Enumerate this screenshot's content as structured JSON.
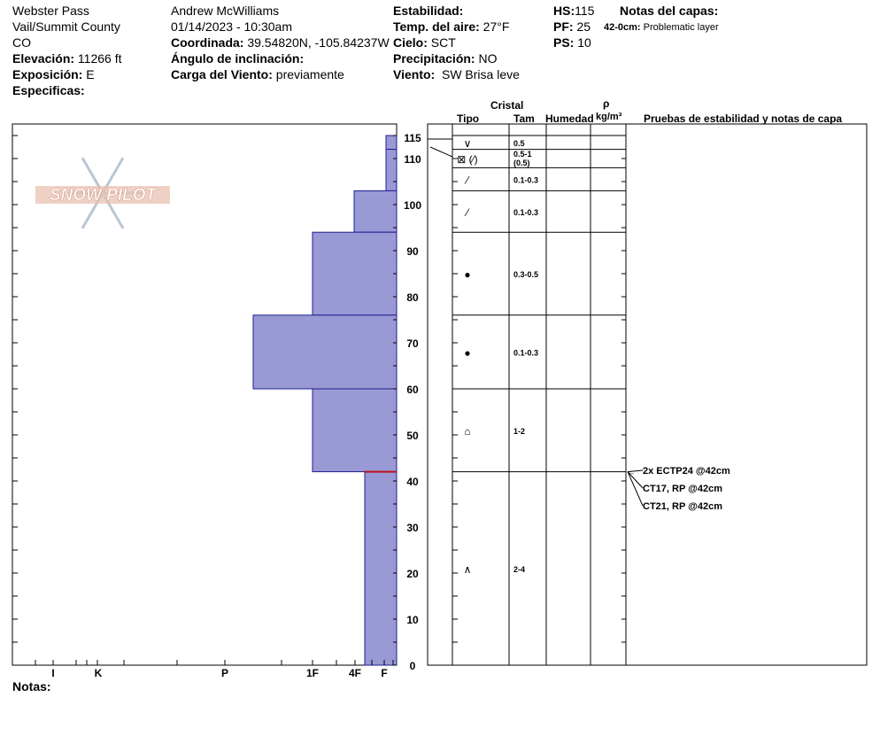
{
  "header": {
    "location": "Webster Pass",
    "region": "Vail/Summit County",
    "state": "CO",
    "elevation_label": "Elevación:",
    "elevation_value": "11266 ft",
    "aspect_label": "Exposición:",
    "aspect_value": "E",
    "specifics_label": "Especificas:",
    "observer": "Andrew McWilliams",
    "datetime": "01/14/2023 - 10:30am",
    "coord_label": "Coordinada:",
    "coord_value": "39.54820N, -105.84237W",
    "slope_label": "Ángulo de inclinación:",
    "wind_load_label": "Carga del Viento:",
    "wind_load_value": "previamente",
    "stability_label": "Estabilidad:",
    "air_temp_label": "Temp. del aire:",
    "air_temp_value": "27°F",
    "sky_label": "Cielo:",
    "sky_value": "SCT",
    "precip_label": "Precipitación:",
    "precip_value": "NO",
    "wind_label": "Viento:",
    "wind_value": "SW Brisa leve",
    "hs_label": "HS:",
    "hs_value": "115",
    "pf_label": "PF:",
    "pf_value": "25",
    "ps_label": "PS:",
    "ps_value": "10",
    "layer_notes_label": "Notas del capas:",
    "layer_note_depth": "42-0cm:",
    "layer_note_text": "Problematic layer"
  },
  "logo_text": "SNOW PILOT",
  "notes_label": "Notas:",
  "columns": {
    "crystal": "Cristal",
    "type": "Tipo",
    "size": "Tam",
    "moisture": "Humedad",
    "rho": "ρ",
    "density_unit": "kg/m³",
    "tests": "Pruebas de estabilidad y notas de capa"
  },
  "colors": {
    "hardness_fill": "#9999d6",
    "hardness_stroke": "#1f1f8f",
    "weak_layer": "#c0101a",
    "grid": "#000000"
  },
  "chart_data": {
    "type": "bar",
    "orientation": "horizontal-step",
    "y_axis_label": "",
    "y_ticks": [
      0,
      10,
      20,
      30,
      40,
      50,
      60,
      70,
      80,
      90,
      100,
      110,
      115
    ],
    "ylim": [
      0,
      115
    ],
    "hardness_ticks": [
      "I",
      "K",
      "P",
      "1F",
      "4F",
      "F"
    ],
    "layers": [
      {
        "top": 115,
        "bottom": 112,
        "hardness": "F+"
      },
      {
        "top": 112,
        "bottom": 103,
        "hardness": "F+"
      },
      {
        "top": 103,
        "bottom": 94,
        "hardness": "4F-"
      },
      {
        "top": 94,
        "bottom": 76,
        "hardness": "1F"
      },
      {
        "top": 76,
        "bottom": 60,
        "hardness": "1F+"
      },
      {
        "top": 60,
        "bottom": 42,
        "hardness": "1F"
      },
      {
        "top": 42,
        "bottom": 0,
        "hardness": "4F+"
      }
    ],
    "weak_layer_depth": 42,
    "crystals": [
      {
        "top": 115,
        "bottom": 112,
        "type_symbol": "∨",
        "size": "0.5"
      },
      {
        "top": 112,
        "bottom": 108,
        "type_symbol": "⊠ (⁄)",
        "size": "0.5-1",
        "size2": "(0.5)"
      },
      {
        "top": 108,
        "bottom": 103,
        "type_symbol": "⁄",
        "size": "0.1-0.3"
      },
      {
        "top": 103,
        "bottom": 94,
        "type_symbol": "⁄",
        "size": "0.1-0.3"
      },
      {
        "top": 94,
        "bottom": 76,
        "type_symbol": "●",
        "size": "0.3-0.5"
      },
      {
        "top": 76,
        "bottom": 60,
        "type_symbol": "●",
        "size": "0.1-0.3"
      },
      {
        "top": 60,
        "bottom": 42,
        "type_symbol": "⌂",
        "size": "1-2"
      },
      {
        "top": 42,
        "bottom": 0,
        "type_symbol": "∧",
        "size": "2-4"
      }
    ],
    "tests": [
      "2x ECTP24 @42cm",
      "CT17, RP @42cm",
      "CT21, RP @42cm"
    ]
  }
}
